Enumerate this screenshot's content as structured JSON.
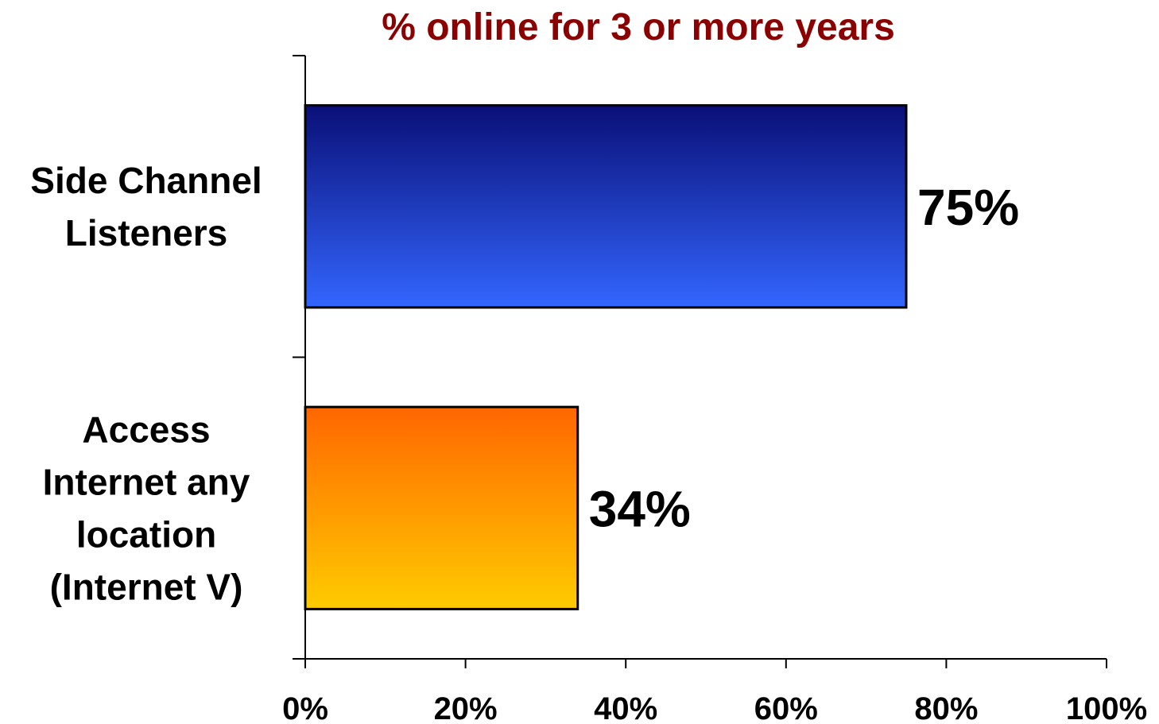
{
  "chart_data": {
    "type": "bar",
    "orientation": "horizontal",
    "title": "% online for 3 or more years",
    "categories": [
      [
        "Side Channel",
        "Listeners"
      ],
      [
        "Access",
        "Internet any",
        "location",
        "(Internet V)"
      ]
    ],
    "values": [
      75,
      34
    ],
    "data_labels": [
      "75%",
      "34%"
    ],
    "xlim": [
      0,
      100
    ],
    "xticks": [
      0,
      20,
      40,
      60,
      80,
      100
    ],
    "xtick_labels": [
      "0%",
      "20%",
      "40%",
      "60%",
      "80%",
      "100%"
    ],
    "bar_gradients": [
      {
        "top": "#0a0f78",
        "bottom": "#3366ff"
      },
      {
        "top": "#ff6600",
        "bottom": "#ffcc00"
      }
    ],
    "grid": false,
    "legend": "none",
    "colors": {
      "title": "#8b0000",
      "text": "#000000",
      "axis": "#000000"
    }
  }
}
